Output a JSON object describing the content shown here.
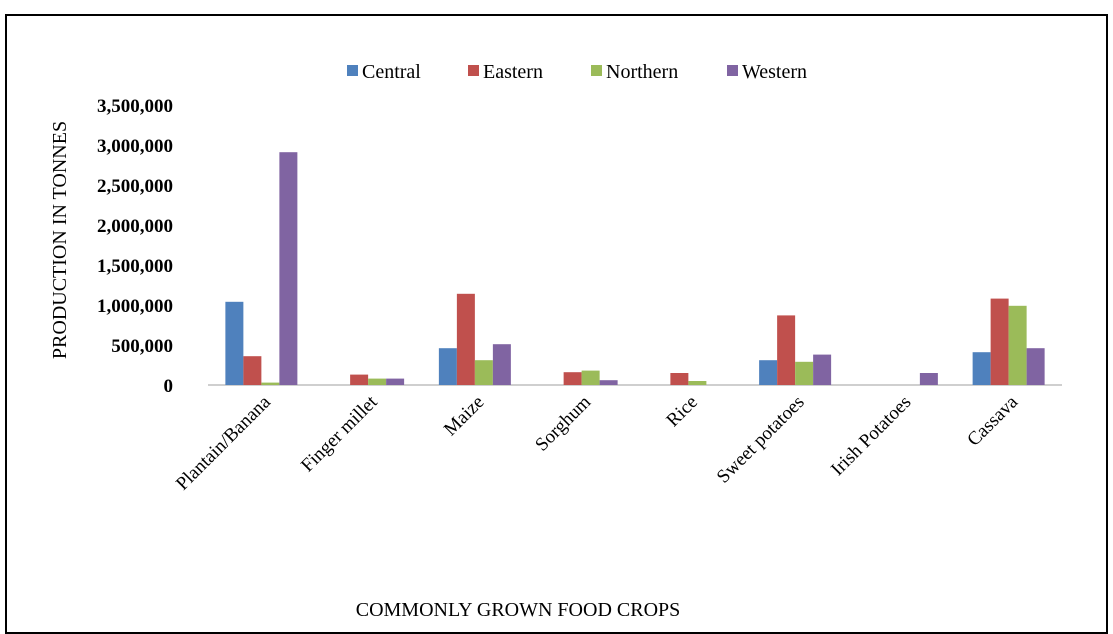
{
  "chart_data": {
    "type": "bar",
    "title": "",
    "xlabel": "COMMONLY GROWN FOOD CROPS",
    "ylabel": "PRODUCTION IN TONNES",
    "ylim": [
      0,
      3500000
    ],
    "yticks": [
      0,
      500000,
      1000000,
      1500000,
      2000000,
      2500000,
      3000000,
      3500000
    ],
    "ytick_labels": [
      "0",
      "500,000",
      "1,000,000",
      "1,500,000",
      "2,000,000",
      "2,500,000",
      "3,000,000",
      "3,500,000"
    ],
    "grid": false,
    "legend_position": "top",
    "categories": [
      "Plantain/Banana",
      "Finger millet",
      "Maize",
      "Sorghum",
      "Rice",
      "Sweet potatoes",
      "Irish Potatoes",
      "Cassava"
    ],
    "series": [
      {
        "name": "Central",
        "color": "#4f81bd",
        "values": [
          1040000,
          0,
          460000,
          0,
          0,
          310000,
          0,
          410000
        ]
      },
      {
        "name": "Eastern",
        "color": "#c0504d",
        "values": [
          360000,
          130000,
          1140000,
          160000,
          150000,
          870000,
          0,
          1080000
        ]
      },
      {
        "name": "Northern",
        "color": "#9bbb59",
        "values": [
          30000,
          80000,
          310000,
          180000,
          50000,
          290000,
          0,
          990000
        ]
      },
      {
        "name": "Western",
        "color": "#8064a2",
        "values": [
          2910000,
          80000,
          510000,
          60000,
          0,
          380000,
          150000,
          460000
        ]
      }
    ]
  }
}
